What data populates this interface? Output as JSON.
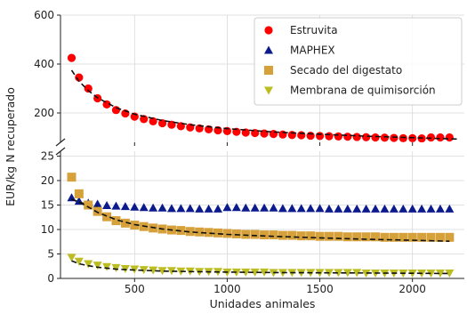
{
  "chart_data": {
    "type": "scatter",
    "xlabel": "Unidades animales",
    "ylabel": "EUR/kg N recuperado",
    "xlim": [
      100,
      2280
    ],
    "xticks": [
      500,
      1000,
      1500,
      2000
    ],
    "grid": true,
    "broken_axis": true,
    "legend_position": "top-right",
    "panels": [
      {
        "position": "top",
        "ylim": [
          80,
          600
        ],
        "yticks": [
          200,
          400,
          600
        ]
      },
      {
        "position": "bottom",
        "ylim": [
          0,
          26
        ],
        "yticks": [
          0,
          5,
          10,
          15,
          20,
          25
        ]
      }
    ],
    "series": [
      {
        "name": "Estruvita",
        "marker": "circle",
        "color": "#ff0000",
        "panel": "top",
        "x": [
          160,
          200,
          250,
          300,
          350,
          400,
          450,
          500,
          550,
          600,
          650,
          700,
          750,
          800,
          850,
          900,
          950,
          1000,
          1050,
          1100,
          1150,
          1200,
          1250,
          1300,
          1350,
          1400,
          1450,
          1500,
          1550,
          1600,
          1650,
          1700,
          1750,
          1800,
          1850,
          1900,
          1950,
          2000,
          2050,
          2100,
          2150,
          2200
        ],
        "y": [
          425,
          345,
          300,
          260,
          235,
          212,
          198,
          185,
          175,
          166,
          158,
          152,
          146,
          141,
          137,
          133,
          129,
          126,
          123,
          120,
          118,
          116,
          114,
          112,
          110,
          109,
          107,
          106,
          105,
          104,
          103,
          102,
          101,
          100,
          99,
          98,
          97,
          97,
          96,
          100,
          100,
          100
        ],
        "trend": {
          "x": [
            160,
            200,
            250,
            300,
            400,
            500,
            650,
            800,
            1000,
            1250,
            1500,
            1750,
            2000,
            2250
          ],
          "y": [
            375,
            330,
            292,
            262,
            222,
            195,
            169,
            152,
            136,
            122,
            113,
            105,
            99,
            93
          ]
        }
      },
      {
        "name": "MAPHEX",
        "marker": "triangle-up",
        "color": "#0b1a8c",
        "panel": "bottom",
        "x": [
          160,
          200,
          250,
          300,
          350,
          400,
          450,
          500,
          550,
          600,
          650,
          700,
          750,
          800,
          850,
          900,
          950,
          1000,
          1050,
          1100,
          1150,
          1200,
          1250,
          1300,
          1350,
          1400,
          1450,
          1500,
          1550,
          1600,
          1650,
          1700,
          1750,
          1800,
          1850,
          1900,
          1950,
          2000,
          2050,
          2100,
          2150,
          2200
        ],
        "y": [
          16.5,
          15.8,
          15.4,
          15.2,
          14.9,
          14.8,
          14.7,
          14.6,
          14.5,
          14.4,
          14.4,
          14.3,
          14.3,
          14.3,
          14.2,
          14.2,
          14.2,
          14.5,
          14.5,
          14.4,
          14.4,
          14.4,
          14.4,
          14.3,
          14.3,
          14.3,
          14.3,
          14.3,
          14.2,
          14.2,
          14.2,
          14.2,
          14.2,
          14.2,
          14.2,
          14.2,
          14.2,
          14.2,
          14.2,
          14.2,
          14.2,
          14.2
        ],
        "trend": {
          "x": [
            160,
            200,
            250,
            300
          ],
          "y": [
            16.2,
            15.6,
            15.1,
            14.7
          ]
        }
      },
      {
        "name": "Secado del digestato",
        "marker": "square",
        "color": "#d6a13a",
        "panel": "bottom",
        "x": [
          160,
          200,
          250,
          300,
          350,
          400,
          450,
          500,
          550,
          600,
          650,
          700,
          750,
          800,
          850,
          900,
          950,
          1000,
          1050,
          1100,
          1150,
          1200,
          1250,
          1300,
          1350,
          1400,
          1450,
          1500,
          1550,
          1600,
          1650,
          1700,
          1750,
          1800,
          1850,
          1900,
          1950,
          2000,
          2050,
          2100,
          2150,
          2200
        ],
        "y": [
          20.7,
          17.3,
          15.0,
          13.7,
          12.6,
          11.8,
          11.3,
          10.9,
          10.6,
          10.3,
          10.1,
          9.9,
          9.8,
          9.6,
          9.5,
          9.4,
          9.3,
          9.2,
          9.1,
          9.0,
          9.0,
          8.9,
          8.9,
          8.8,
          8.8,
          8.7,
          8.7,
          8.6,
          8.6,
          8.6,
          8.5,
          8.5,
          8.5,
          8.5,
          8.4,
          8.4,
          8.4,
          8.4,
          8.4,
          8.4,
          8.4,
          8.4
        ],
        "trend": {
          "x": [
            160,
            200,
            250,
            300,
            400,
            500,
            650,
            800,
            1000,
            1250,
            1500,
            1750,
            2000,
            2200
          ],
          "y": [
            16.2,
            15.6,
            14.6,
            13.5,
            12.0,
            11.0,
            10.1,
            9.5,
            9.0,
            8.6,
            8.3,
            8.0,
            7.8,
            7.6
          ]
        }
      },
      {
        "name": "Membrana de quimisorción",
        "marker": "triangle-down",
        "color": "#bcbd22",
        "panel": "bottom",
        "x": [
          160,
          200,
          250,
          300,
          350,
          400,
          450,
          500,
          550,
          600,
          650,
          700,
          750,
          800,
          850,
          900,
          950,
          1000,
          1050,
          1100,
          1150,
          1200,
          1250,
          1300,
          1350,
          1400,
          1450,
          1500,
          1550,
          1600,
          1650,
          1700,
          1750,
          1800,
          1850,
          1900,
          1950,
          2000,
          2050,
          2100,
          2150,
          2200
        ],
        "y": [
          4.3,
          3.5,
          3.0,
          2.7,
          2.4,
          2.2,
          2.0,
          1.9,
          1.8,
          1.7,
          1.6,
          1.6,
          1.5,
          1.5,
          1.4,
          1.4,
          1.4,
          1.3,
          1.3,
          1.3,
          1.3,
          1.3,
          1.2,
          1.2,
          1.2,
          1.2,
          1.2,
          1.2,
          1.2,
          1.2,
          1.2,
          1.2,
          1.1,
          1.1,
          1.1,
          1.1,
          1.1,
          1.1,
          1.1,
          1.1,
          1.1,
          1.1
        ],
        "trend": {
          "x": [
            160,
            200,
            250,
            300,
            400,
            500,
            650,
            800,
            1000,
            1250,
            1500,
            1750,
            2000,
            2200
          ],
          "y": [
            3.6,
            3.0,
            2.6,
            2.3,
            1.9,
            1.7,
            1.5,
            1.4,
            1.3,
            1.2,
            1.15,
            1.1,
            1.05,
            1.0
          ]
        }
      }
    ]
  }
}
